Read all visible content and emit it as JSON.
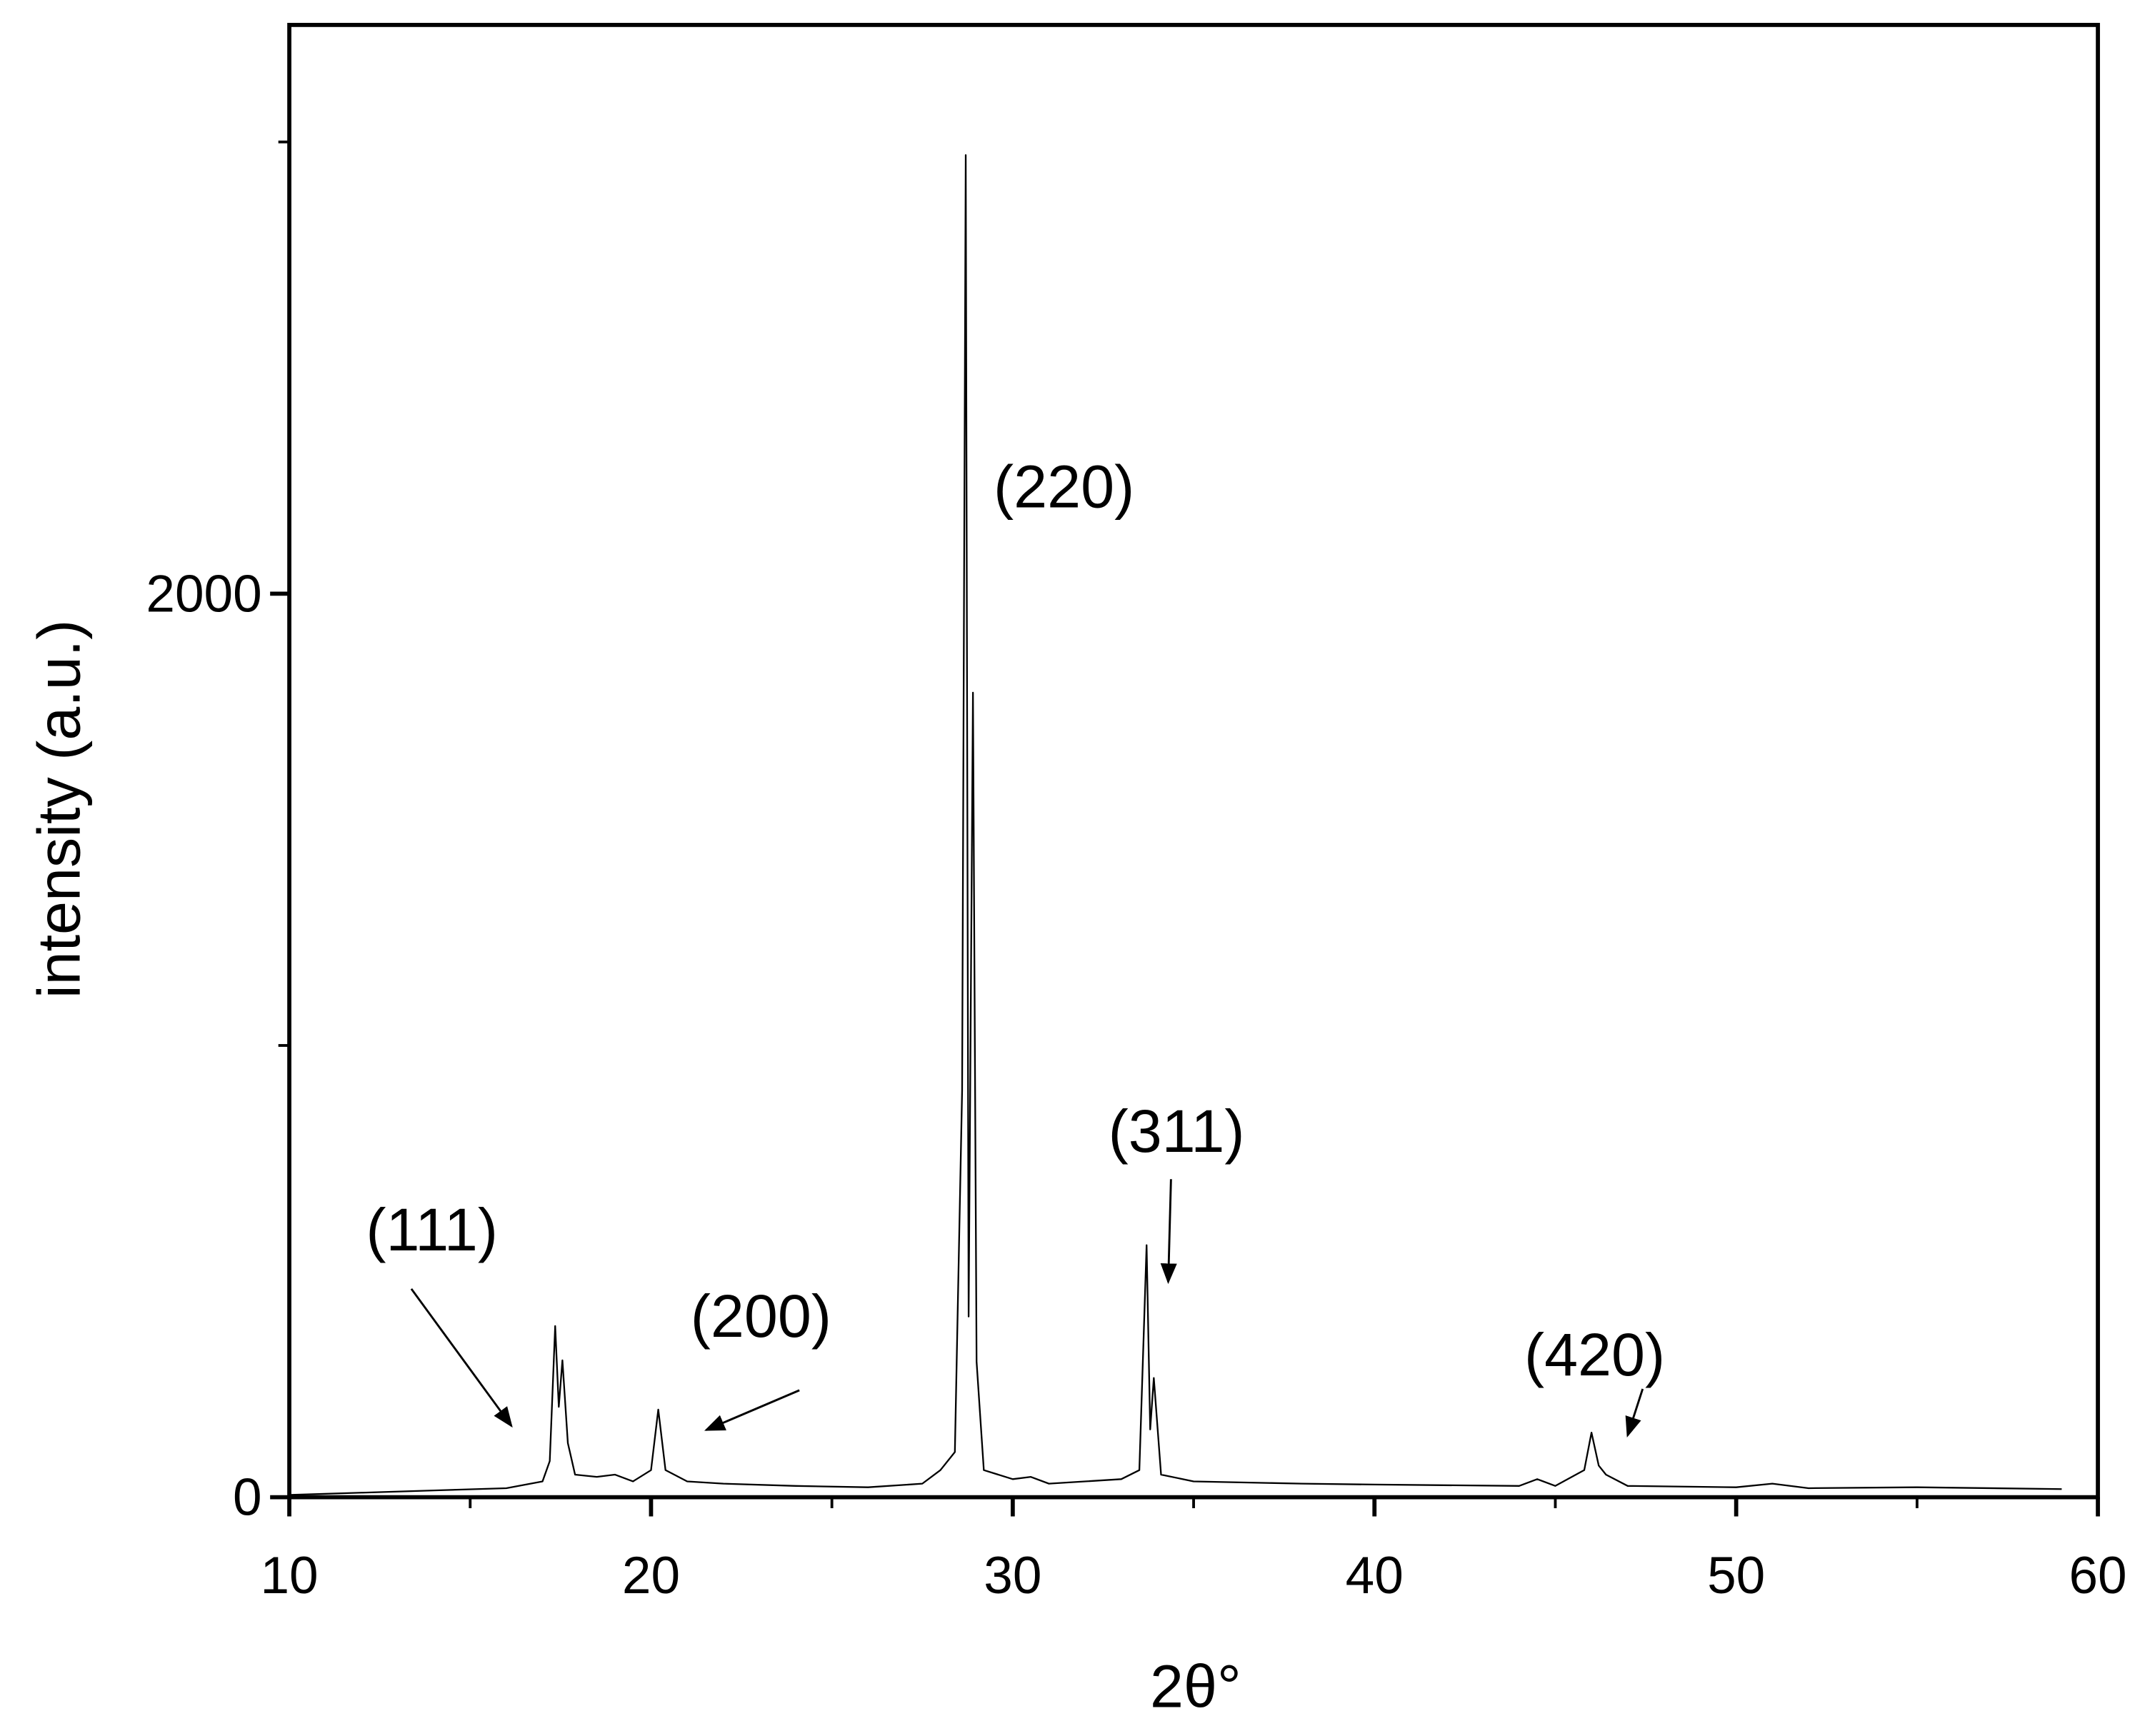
{
  "chart_data": {
    "type": "line",
    "x_label": "2θ°",
    "y_label": "intensity (a.u.)",
    "x": [
      10,
      12,
      14,
      16,
      17,
      17.2,
      17.35,
      17.45,
      17.55,
      17.7,
      17.9,
      18.5,
      19,
      19.5,
      20.0,
      20.2,
      20.4,
      21,
      22,
      24,
      26,
      27.5,
      28,
      28.4,
      28.6,
      28.7,
      28.78,
      28.9,
      29.0,
      29.2,
      30,
      30.5,
      31,
      33,
      33.5,
      33.7,
      33.8,
      33.9,
      34.1,
      35,
      38,
      40,
      44,
      44.5,
      45,
      45.8,
      46.0,
      46.2,
      46.4,
      47,
      50,
      51,
      52,
      55,
      59
    ],
    "series": [
      {
        "color": "#000000",
        "values": [
          5,
          10,
          15,
          20,
          35,
          80,
          379,
          200,
          303,
          120,
          50,
          45,
          50,
          35,
          60,
          194,
          60,
          35,
          30,
          25,
          22,
          30,
          60,
          100,
          900,
          2971,
          400,
          1781,
          300,
          60,
          40,
          45,
          30,
          40,
          60,
          558,
          150,
          264,
          50,
          35,
          30,
          28,
          25,
          40,
          25,
          60,
          143,
          70,
          50,
          25,
          22,
          30,
          20,
          22,
          18
        ]
      }
    ],
    "xlim": [
      10,
      60
    ],
    "xticks": [
      10,
      20,
      30,
      40,
      50,
      60
    ],
    "minor_xticks": [
      15,
      25,
      35,
      45,
      55
    ],
    "ylim": [
      0,
      3259
    ],
    "yticks": [
      0,
      2000
    ],
    "minor_yticks": [
      1000,
      3000
    ],
    "annotations": [
      "(111)",
      "(200)",
      "(220)",
      "(311)",
      "(420)"
    ]
  }
}
